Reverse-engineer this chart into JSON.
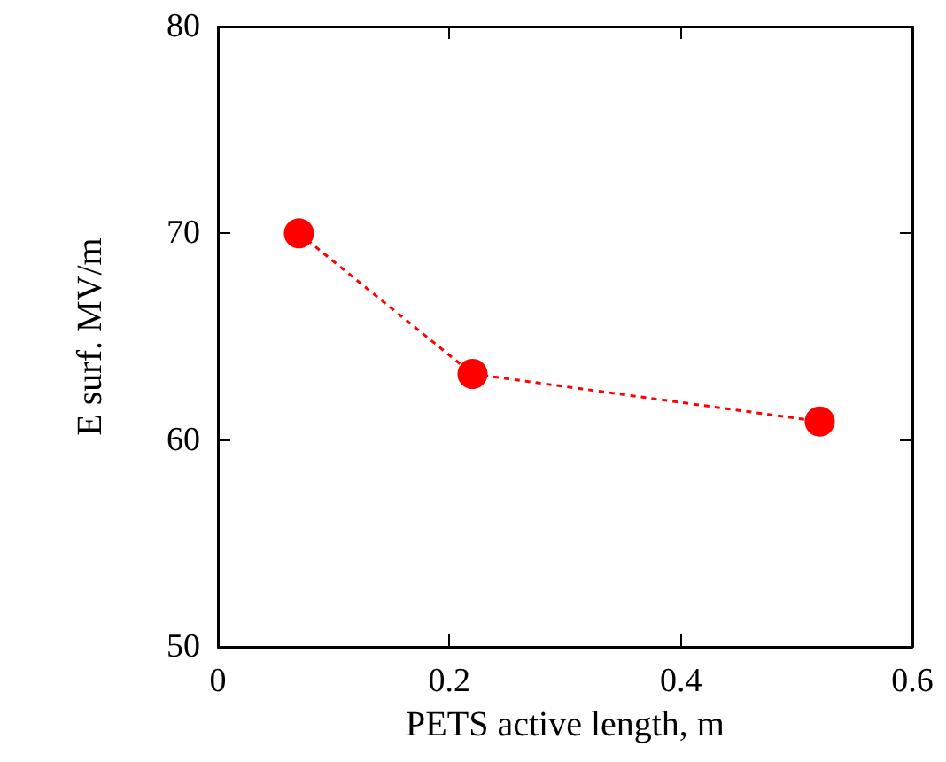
{
  "chart_data": {
    "type": "line",
    "xlabel": "PETS active length, m",
    "ylabel": "E surf. MV/m",
    "x": [
      0.07,
      0.22,
      0.52
    ],
    "series": [
      {
        "color": "#ff0000",
        "values": [
          70,
          63.2,
          60.9
        ]
      }
    ],
    "marker": "circle",
    "line_style": "dotted",
    "xlim": [
      0,
      0.6
    ],
    "xticks": [
      0,
      0.2,
      0.4,
      0.6
    ],
    "ylim": [
      50,
      80
    ],
    "yticks": [
      50,
      60,
      70,
      80
    ],
    "grid": false
  }
}
